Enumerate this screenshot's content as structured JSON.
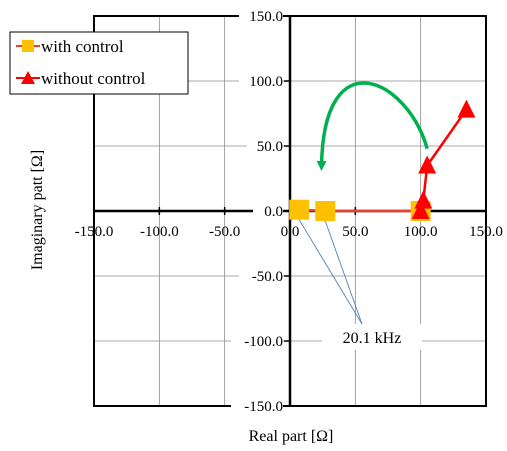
{
  "chart_data": {
    "type": "scatter",
    "title": "",
    "xlabel": "Real part [Ω]",
    "ylabel": "Imaginary patt [Ω]",
    "xlim": [
      -150,
      150
    ],
    "ylim": [
      -150,
      150
    ],
    "x_ticks": [
      -150,
      -100,
      -50,
      0,
      50,
      100,
      150
    ],
    "y_ticks": [
      150,
      100,
      50,
      0,
      -50,
      -100,
      -150
    ],
    "x_tick_labels": [
      "-150.0",
      "-100.0",
      "-50.0",
      "0.0",
      "50.0",
      "100.0",
      "150.0"
    ],
    "y_tick_labels": [
      "150.0",
      "100.0",
      "50.0",
      "0.0",
      "-50.0",
      "-100.0",
      "-150.0"
    ],
    "grid": true,
    "legend_position": "top-left",
    "series": [
      {
        "name": "with control",
        "marker": "square",
        "color": "#FFC000",
        "line_color": "#E8412C",
        "points": [
          [
            7,
            1
          ],
          [
            27,
            0
          ],
          [
            100,
            0
          ]
        ]
      },
      {
        "name": "without control",
        "marker": "triangle",
        "color": "#FF0000",
        "line_color": "#FF0000",
        "points": [
          [
            100,
            0
          ],
          [
            102,
            8
          ],
          [
            105,
            35
          ],
          [
            135,
            78
          ]
        ]
      }
    ],
    "annotations": [
      {
        "text": "20.1 kHz",
        "target_points": [
          [
            7,
            1
          ],
          [
            27,
            0
          ]
        ],
        "line_color": "#4F81BD"
      },
      {
        "type": "curved-arrow",
        "color": "#00B050",
        "from": [
          105,
          48
        ],
        "to": [
          18,
          10
        ]
      }
    ]
  }
}
